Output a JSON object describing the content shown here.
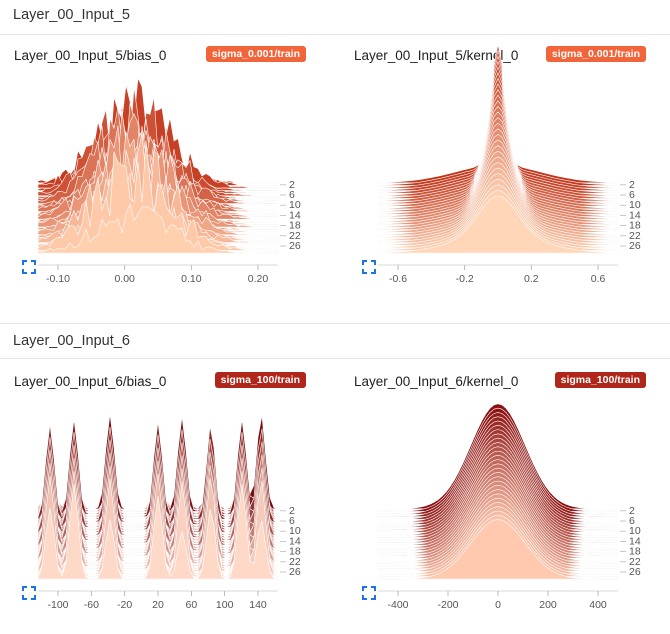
{
  "sections": [
    {
      "title": "Layer_00_Input_5",
      "cards": [
        {
          "title": "Layer_00_Input_5/bias_0",
          "tag": "sigma_0.001/train",
          "tag_color": "#f2643a",
          "steps": [
            "2",
            "6",
            "10",
            "14",
            "18",
            "22",
            "26"
          ],
          "x_ticks": [
            "-0.10",
            "0.00",
            "0.10",
            "0.20"
          ]
        },
        {
          "title": "Layer_00_Input_5/kernel_0",
          "tag": "sigma_0.001/train",
          "tag_color": "#f2643a",
          "steps": [
            "2",
            "6",
            "10",
            "14",
            "18",
            "22",
            "26"
          ],
          "x_ticks": [
            "-0.6",
            "-0.2",
            "0.2",
            "0.6"
          ]
        }
      ]
    },
    {
      "title": "Layer_00_Input_6",
      "cards": [
        {
          "title": "Layer_00_Input_6/bias_0",
          "tag": "sigma_100/train",
          "tag_color": "#b0261a",
          "steps": [
            "2",
            "6",
            "10",
            "14",
            "18",
            "22",
            "26"
          ],
          "x_ticks": [
            "-100",
            "-60",
            "-20",
            "20",
            "60",
            "100",
            "140"
          ]
        },
        {
          "title": "Layer_00_Input_6/kernel_0",
          "tag": "sigma_100/train",
          "tag_color": "#b0261a",
          "steps": [
            "2",
            "6",
            "10",
            "14",
            "18",
            "22",
            "26"
          ],
          "x_ticks": [
            "-400",
            "-200",
            "0",
            "200",
            "400"
          ]
        }
      ]
    }
  ],
  "icons": {
    "expand": "fullscreen-expand-icon"
  }
}
